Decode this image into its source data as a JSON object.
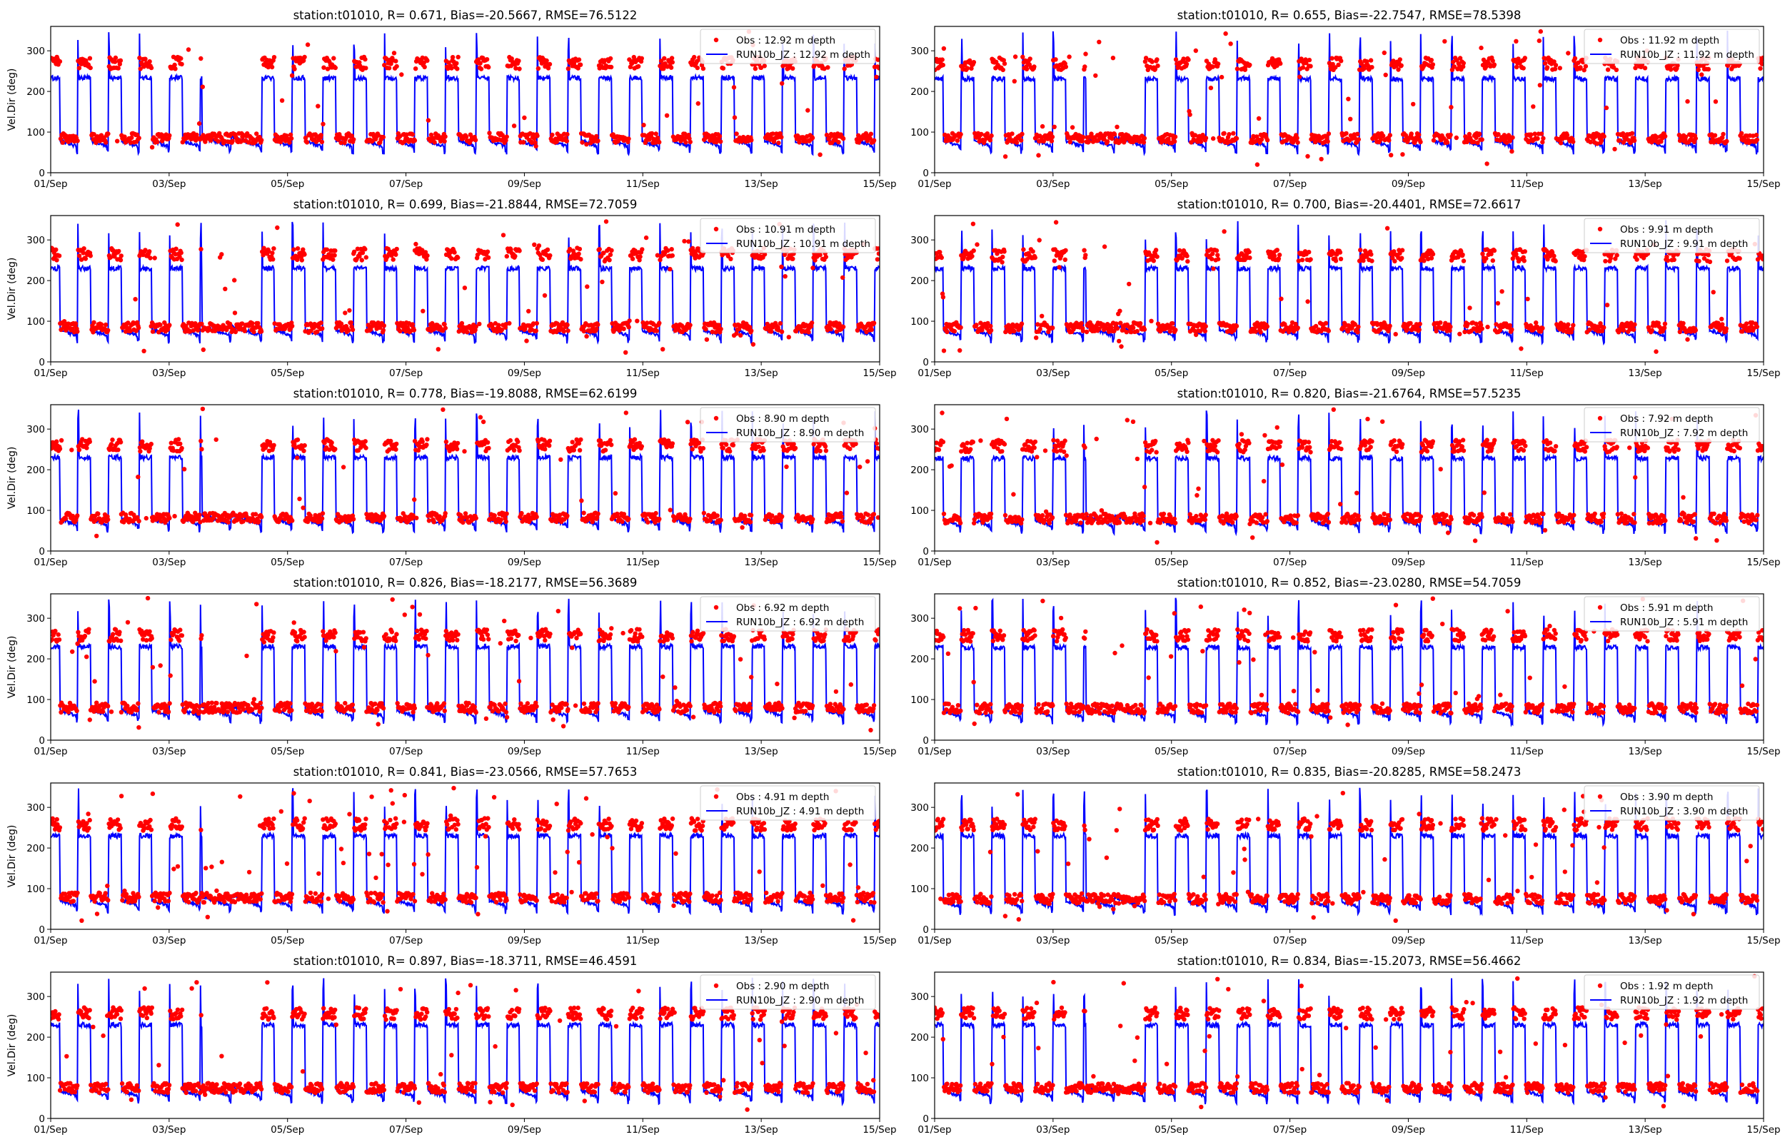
{
  "figure": {
    "x_tick_labels": [
      "01/Sep",
      "03/Sep",
      "05/Sep",
      "07/Sep",
      "09/Sep",
      "11/Sep",
      "13/Sep",
      "15/Sep"
    ],
    "y_ticks": [
      0,
      100,
      200,
      300
    ],
    "ylabel": "Vel.Dir (deg)",
    "obs_color": "#ff0000",
    "model_color": "#0000ff"
  },
  "chart_data": [
    {
      "type": "line",
      "title": "station:t01010, R= 0.671, Bias=-20.5667, RMSE=76.5122",
      "depth": 12.92,
      "xlim": [
        "01/Sep",
        "15/Sep"
      ],
      "ylim": [
        0,
        360
      ],
      "ylabel": "Vel.Dir (deg)",
      "legend_position": "top-right",
      "series": [
        {
          "name": "Obs : 12.92 m depth",
          "style": "points",
          "color": "#ff0000",
          "typical_values": {
            "flood_deg": 270,
            "ebb_deg": 85
          }
        },
        {
          "name": "RUN10b_JZ : 12.92 m depth",
          "style": "line",
          "color": "#0000ff",
          "typical_values": {
            "flood_deg": 235,
            "ebb_deg": 65
          }
        }
      ]
    },
    {
      "type": "line",
      "title": "station:t01010, R= 0.655, Bias=-22.7547, RMSE=78.5398",
      "depth": 11.92,
      "xlim": [
        "01/Sep",
        "15/Sep"
      ],
      "ylim": [
        0,
        360
      ],
      "ylabel": "",
      "legend_position": "top-right",
      "series": [
        {
          "name": "Obs : 11.92 m depth",
          "style": "points",
          "color": "#ff0000",
          "typical_values": {
            "flood_deg": 268,
            "ebb_deg": 85
          }
        },
        {
          "name": "RUN10b_JZ : 11.92 m depth",
          "style": "line",
          "color": "#0000ff",
          "typical_values": {
            "flood_deg": 233,
            "ebb_deg": 65
          }
        }
      ]
    },
    {
      "type": "line",
      "title": "station:t01010, R= 0.699, Bias=-21.8844, RMSE=72.7059",
      "depth": 10.91,
      "xlim": [
        "01/Sep",
        "15/Sep"
      ],
      "ylim": [
        0,
        360
      ],
      "ylabel": "Vel.Dir (deg)",
      "legend_position": "top-right",
      "series": [
        {
          "name": "Obs : 10.91 m depth",
          "style": "points",
          "color": "#ff0000",
          "typical_values": {
            "flood_deg": 265,
            "ebb_deg": 85
          }
        },
        {
          "name": "RUN10b_JZ : 10.91 m depth",
          "style": "line",
          "color": "#0000ff",
          "typical_values": {
            "flood_deg": 232,
            "ebb_deg": 65
          }
        }
      ]
    },
    {
      "type": "line",
      "title": "station:t01010, R= 0.700, Bias=-20.4401, RMSE=72.6617",
      "depth": 9.91,
      "xlim": [
        "01/Sep",
        "15/Sep"
      ],
      "ylim": [
        0,
        360
      ],
      "ylabel": "",
      "legend_position": "top-right",
      "series": [
        {
          "name": "Obs : 9.91 m depth",
          "style": "points",
          "color": "#ff0000",
          "typical_values": {
            "flood_deg": 262,
            "ebb_deg": 85
          }
        },
        {
          "name": "RUN10b_JZ : 9.91 m depth",
          "style": "line",
          "color": "#0000ff",
          "typical_values": {
            "flood_deg": 232,
            "ebb_deg": 65
          }
        }
      ]
    },
    {
      "type": "line",
      "title": "station:t01010, R= 0.778, Bias=-19.8088, RMSE=62.6199",
      "depth": 8.9,
      "xlim": [
        "01/Sep",
        "15/Sep"
      ],
      "ylim": [
        0,
        360
      ],
      "ylabel": "Vel.Dir (deg)",
      "legend_position": "top-right",
      "series": [
        {
          "name": "Obs : 8.90 m depth",
          "style": "points",
          "color": "#ff0000",
          "typical_values": {
            "flood_deg": 260,
            "ebb_deg": 82
          }
        },
        {
          "name": "RUN10b_JZ : 8.90 m depth",
          "style": "line",
          "color": "#0000ff",
          "typical_values": {
            "flood_deg": 232,
            "ebb_deg": 65
          }
        }
      ]
    },
    {
      "type": "line",
      "title": "station:t01010, R= 0.820, Bias=-21.6764, RMSE=57.5235",
      "depth": 7.92,
      "xlim": [
        "01/Sep",
        "15/Sep"
      ],
      "ylim": [
        0,
        360
      ],
      "ylabel": "",
      "legend_position": "top-right",
      "series": [
        {
          "name": "Obs : 7.92 m depth",
          "style": "points",
          "color": "#ff0000",
          "typical_values": {
            "flood_deg": 258,
            "ebb_deg": 80
          }
        },
        {
          "name": "RUN10b_JZ : 7.92 m depth",
          "style": "line",
          "color": "#0000ff",
          "typical_values": {
            "flood_deg": 230,
            "ebb_deg": 62
          }
        }
      ]
    },
    {
      "type": "line",
      "title": "station:t01010, R= 0.826, Bias=-18.2177, RMSE=56.3689",
      "depth": 6.92,
      "xlim": [
        "01/Sep",
        "15/Sep"
      ],
      "ylim": [
        0,
        360
      ],
      "ylabel": "Vel.Dir (deg)",
      "legend_position": "top-right",
      "series": [
        {
          "name": "Obs : 6.92 m depth",
          "style": "points",
          "color": "#ff0000",
          "typical_values": {
            "flood_deg": 258,
            "ebb_deg": 80
          }
        },
        {
          "name": "RUN10b_JZ : 6.92 m depth",
          "style": "line",
          "color": "#0000ff",
          "typical_values": {
            "flood_deg": 232,
            "ebb_deg": 60
          }
        }
      ]
    },
    {
      "type": "line",
      "title": "station:t01010, R= 0.852, Bias=-23.0280, RMSE=54.7059",
      "depth": 5.91,
      "xlim": [
        "01/Sep",
        "15/Sep"
      ],
      "ylim": [
        0,
        360
      ],
      "ylabel": "",
      "legend_position": "top-right",
      "series": [
        {
          "name": "Obs : 5.91 m depth",
          "style": "points",
          "color": "#ff0000",
          "typical_values": {
            "flood_deg": 258,
            "ebb_deg": 78
          }
        },
        {
          "name": "RUN10b_JZ : 5.91 m depth",
          "style": "line",
          "color": "#0000ff",
          "typical_values": {
            "flood_deg": 230,
            "ebb_deg": 58
          }
        }
      ]
    },
    {
      "type": "line",
      "title": "station:t01010, R= 0.841, Bias=-23.0566, RMSE=57.7653",
      "depth": 4.91,
      "xlim": [
        "01/Sep",
        "15/Sep"
      ],
      "ylim": [
        0,
        360
      ],
      "ylabel": "Vel.Dir (deg)",
      "legend_position": "top-right",
      "series": [
        {
          "name": "Obs : 4.91 m depth",
          "style": "points",
          "color": "#ff0000",
          "typical_values": {
            "flood_deg": 258,
            "ebb_deg": 78
          }
        },
        {
          "name": "RUN10b_JZ : 4.91 m depth",
          "style": "line",
          "color": "#0000ff",
          "typical_values": {
            "flood_deg": 232,
            "ebb_deg": 58
          }
        }
      ]
    },
    {
      "type": "line",
      "title": "station:t01010, R= 0.835, Bias=-20.8285, RMSE=58.2473",
      "depth": 3.9,
      "xlim": [
        "01/Sep",
        "15/Sep"
      ],
      "ylim": [
        0,
        360
      ],
      "ylabel": "",
      "legend_position": "top-right",
      "series": [
        {
          "name": "Obs : 3.90 m depth",
          "style": "points",
          "color": "#ff0000",
          "typical_values": {
            "flood_deg": 258,
            "ebb_deg": 75
          }
        },
        {
          "name": "RUN10b_JZ : 3.90 m depth",
          "style": "line",
          "color": "#0000ff",
          "typical_values": {
            "flood_deg": 232,
            "ebb_deg": 55
          }
        }
      ]
    },
    {
      "type": "line",
      "title": "station:t01010, R= 0.897, Bias=-18.3711, RMSE=46.4591",
      "depth": 2.9,
      "xlim": [
        "01/Sep",
        "15/Sep"
      ],
      "ylim": [
        0,
        360
      ],
      "ylabel": "Vel.Dir (deg)",
      "legend_position": "top-right",
      "series": [
        {
          "name": "Obs : 2.90 m depth",
          "style": "points",
          "color": "#ff0000",
          "typical_values": {
            "flood_deg": 258,
            "ebb_deg": 75
          }
        },
        {
          "name": "RUN10b_JZ : 2.90 m depth",
          "style": "line",
          "color": "#0000ff",
          "typical_values": {
            "flood_deg": 232,
            "ebb_deg": 55
          }
        }
      ]
    },
    {
      "type": "line",
      "title": "station:t01010, R= 0.834, Bias=-15.2073, RMSE=56.4662",
      "depth": 1.92,
      "xlim": [
        "01/Sep",
        "15/Sep"
      ],
      "ylim": [
        0,
        360
      ],
      "ylabel": "",
      "legend_position": "top-right",
      "series": [
        {
          "name": "Obs : 1.92 m depth",
          "style": "points",
          "color": "#ff0000",
          "typical_values": {
            "flood_deg": 258,
            "ebb_deg": 75
          }
        },
        {
          "name": "RUN10b_JZ : 1.92 m depth",
          "style": "line",
          "color": "#0000ff",
          "typical_values": {
            "flood_deg": 232,
            "ebb_deg": 55
          }
        }
      ]
    }
  ]
}
